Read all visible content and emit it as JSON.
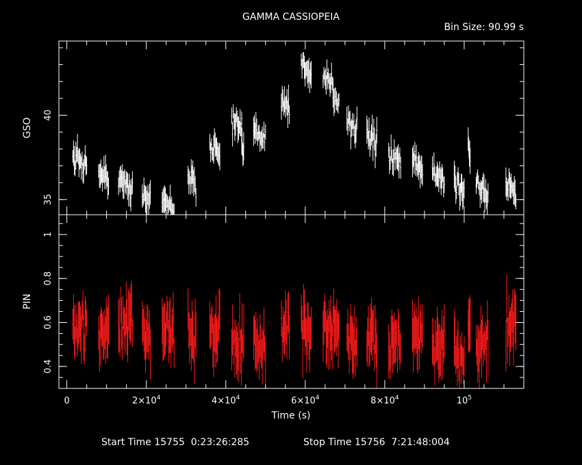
{
  "chart_data": {
    "type": "scatter",
    "title": "GAMMA CASSIOPEIA",
    "bin_size_label": "Bin Size: 90.99 s",
    "xlabel": "Time (s)",
    "xlim": [
      -2000,
      115000
    ],
    "x_tick_values": [
      0,
      20000,
      40000,
      60000,
      80000,
      100000
    ],
    "x_tick_labels": [
      {
        "base": "0",
        "exp": ""
      },
      {
        "base": "2×10",
        "exp": "4"
      },
      {
        "base": "4×10",
        "exp": "4"
      },
      {
        "base": "6×10",
        "exp": "4"
      },
      {
        "base": "8×10",
        "exp": "4"
      },
      {
        "base": "10",
        "exp": "5"
      }
    ],
    "panels": [
      {
        "ylabel": "GSO",
        "ylim": [
          34.1,
          44.4
        ],
        "y_tick_values": [
          35,
          40
        ],
        "y_tick_labels": [
          "35",
          "40"
        ],
        "color": "#ffffff",
        "segments": [
          {
            "x0": 1500,
            "x1": 5000,
            "y": 37.3
          },
          {
            "x0": 8000,
            "x1": 10500,
            "y": 36.4
          },
          {
            "x0": 13000,
            "x1": 16500,
            "y": 35.9
          },
          {
            "x0": 19000,
            "x1": 21000,
            "y": 35.3
          },
          {
            "x0": 24000,
            "x1": 27000,
            "y": 34.7
          },
          {
            "x0": 30500,
            "x1": 32500,
            "y": 36.1
          },
          {
            "x0": 36000,
            "x1": 38500,
            "y": 38.0
          },
          {
            "x0": 41500,
            "x1": 44000,
            "y": 39.3
          },
          {
            "x0": 44000,
            "x1": 44500,
            "y": 37.8
          },
          {
            "x0": 47000,
            "x1": 50000,
            "y": 38.9
          },
          {
            "x0": 54000,
            "x1": 56000,
            "y": 40.7
          },
          {
            "x0": 59000,
            "x1": 61500,
            "y": 42.6
          },
          {
            "x0": 64500,
            "x1": 67000,
            "y": 42.1
          },
          {
            "x0": 67000,
            "x1": 68500,
            "y": 40.8
          },
          {
            "x0": 70500,
            "x1": 73000,
            "y": 39.4
          },
          {
            "x0": 75500,
            "x1": 78000,
            "y": 38.5
          },
          {
            "x0": 81000,
            "x1": 84000,
            "y": 37.4
          },
          {
            "x0": 87000,
            "x1": 89500,
            "y": 36.9
          },
          {
            "x0": 92000,
            "x1": 95000,
            "y": 36.4
          },
          {
            "x0": 97500,
            "x1": 100000,
            "y": 35.9
          },
          {
            "x0": 101000,
            "x1": 101500,
            "y": 37.9
          },
          {
            "x0": 103000,
            "x1": 106000,
            "y": 35.5
          },
          {
            "x0": 110500,
            "x1": 113000,
            "y": 35.6
          }
        ]
      },
      {
        "ylabel": "PIN",
        "ylim": [
          0.3,
          1.09
        ],
        "y_tick_values": [
          0.4,
          0.6,
          0.8,
          1.0
        ],
        "y_tick_labels": [
          "0.4",
          "0.6",
          "0.8",
          "1"
        ],
        "color": "#ff1a1a",
        "segments": [
          {
            "x0": 1500,
            "x1": 5000,
            "y": 0.57
          },
          {
            "x0": 8000,
            "x1": 10500,
            "y": 0.56
          },
          {
            "x0": 13000,
            "x1": 16500,
            "y": 0.58
          },
          {
            "x0": 19000,
            "x1": 21000,
            "y": 0.56
          },
          {
            "x0": 24000,
            "x1": 27000,
            "y": 0.57
          },
          {
            "x0": 30500,
            "x1": 32500,
            "y": 0.55
          },
          {
            "x0": 36000,
            "x1": 38500,
            "y": 0.57
          },
          {
            "x0": 41500,
            "x1": 44500,
            "y": 0.52
          },
          {
            "x0": 47000,
            "x1": 50000,
            "y": 0.48
          },
          {
            "x0": 54000,
            "x1": 56000,
            "y": 0.58
          },
          {
            "x0": 59000,
            "x1": 61500,
            "y": 0.58
          },
          {
            "x0": 64500,
            "x1": 68500,
            "y": 0.57
          },
          {
            "x0": 70500,
            "x1": 73000,
            "y": 0.53
          },
          {
            "x0": 75500,
            "x1": 78000,
            "y": 0.51
          },
          {
            "x0": 81000,
            "x1": 84000,
            "y": 0.52
          },
          {
            "x0": 87000,
            "x1": 89500,
            "y": 0.53
          },
          {
            "x0": 92000,
            "x1": 95000,
            "y": 0.49
          },
          {
            "x0": 97500,
            "x1": 100000,
            "y": 0.44
          },
          {
            "x0": 101000,
            "x1": 101500,
            "y": 0.62
          },
          {
            "x0": 103000,
            "x1": 106000,
            "y": 0.5
          },
          {
            "x0": 110500,
            "x1": 113000,
            "y": 0.58
          }
        ]
      }
    ]
  },
  "footer": {
    "start_label": "Start Time 15755  0:23:26:285",
    "stop_label": "Stop Time 15756  7:21:48:004"
  }
}
